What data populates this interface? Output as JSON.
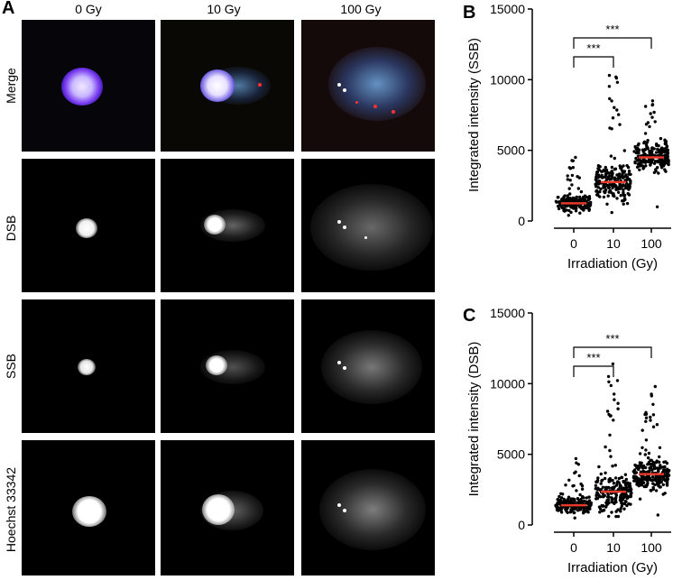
{
  "panel_a": {
    "letter": "A",
    "columns": [
      "0 Gy",
      "10 Gy",
      "100 Gy"
    ],
    "rows": [
      "Merge",
      "DSB",
      "SSB",
      "Hoechst 33342"
    ]
  },
  "chart_data": [
    {
      "panel": "B",
      "type": "scatter",
      "xlabel": "Irradiation (Gy)",
      "ylabel": "Integrated intensity (SSB)",
      "categories": [
        "0",
        "10",
        "100"
      ],
      "ylim": [
        0,
        15000
      ],
      "yticks": [
        "0",
        "5000",
        "10000",
        "15000"
      ],
      "medians": [
        1250,
        2750,
        4500
      ],
      "ranges": [
        [
          400,
          4500
        ],
        [
          600,
          10300
        ],
        [
          1000,
          8500
        ]
      ],
      "point_counts": [
        180,
        200,
        220
      ],
      "significance": [
        {
          "from": "0",
          "to": "10",
          "label": "***"
        },
        {
          "from": "0",
          "to": "100",
          "label": "***"
        }
      ]
    },
    {
      "panel": "C",
      "type": "scatter",
      "xlabel": "Irradiation (Gy)",
      "ylabel": "Integrated intensity (DSB)",
      "categories": [
        "0",
        "10",
        "100"
      ],
      "ylim": [
        0,
        15000
      ],
      "yticks": [
        "0",
        "5000",
        "10000",
        "15000"
      ],
      "medians": [
        1400,
        2350,
        3600
      ],
      "ranges": [
        [
          500,
          4700
        ],
        [
          600,
          11400
        ],
        [
          700,
          9800
        ]
      ],
      "point_counts": [
        180,
        200,
        220
      ],
      "significance": [
        {
          "from": "0",
          "to": "10",
          "label": "***"
        },
        {
          "from": "0",
          "to": "100",
          "label": "***"
        }
      ]
    }
  ],
  "colors": {
    "median_line": "#e8392b",
    "points": "#000000",
    "merge_core": "#c9b8ff",
    "merge_halo": "#3a2bd0",
    "tail_blue": "#6aa8e8",
    "tail_red": "#ff3030"
  }
}
